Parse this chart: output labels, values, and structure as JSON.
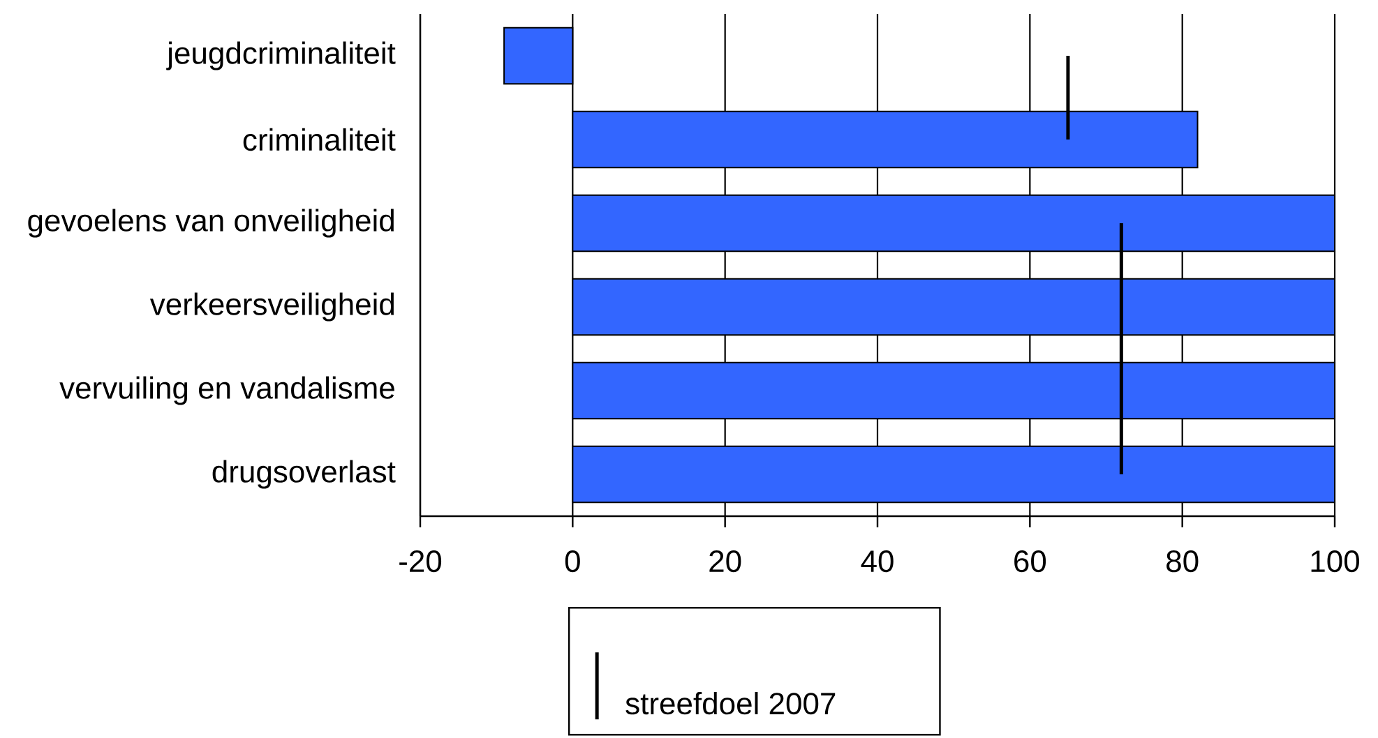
{
  "chart_data": {
    "type": "bar",
    "orientation": "horizontal",
    "categories": [
      "jeugdcriminaliteit",
      "criminaliteit",
      "gevoelens van onveiligheid",
      "verkeersveiligheid",
      "vervuiling en vandalisme",
      "drugsoverlast"
    ],
    "series": [
      {
        "color": "#3366ff",
        "values": [
          -9,
          82,
          100,
          100,
          100,
          100
        ]
      },
      {
        "name": "streefdoel 2007",
        "type": "line",
        "color": "#000000",
        "values": [
          65,
          65,
          72,
          72,
          72,
          72
        ]
      }
    ],
    "xlim": [
      -20,
      100
    ],
    "xticks": [
      -20,
      0,
      20,
      40,
      60,
      80,
      100
    ],
    "grid": "x",
    "legend": "bottom"
  }
}
